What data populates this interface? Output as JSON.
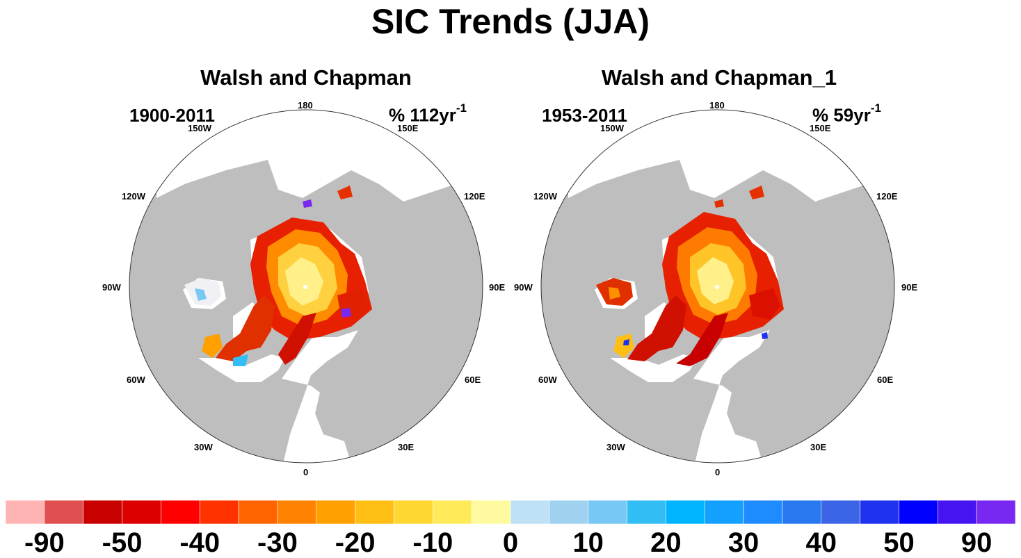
{
  "figure": {
    "title": "SIC Trends (JJA)",
    "colors": {
      "land": "#bebebe",
      "ocean": "#ffffff",
      "outline": "#333333"
    }
  },
  "panels": [
    {
      "title": "Walsh and Chapman",
      "period": "1900-2011",
      "rate_prefix": "% 112yr",
      "rate_exponent": "-1",
      "longitude_labels": {
        "top": "180",
        "150W": "150W",
        "150E": "150E",
        "120W": "120W",
        "120E": "120E",
        "90W": "90W",
        "90E": "90E",
        "60W": "60W",
        "60E": "60E",
        "30W": "30W",
        "30E": "30E",
        "bottom": "0"
      }
    },
    {
      "title": "Walsh and Chapman_1",
      "period": "1953-2011",
      "rate_prefix": "% 59yr",
      "rate_exponent": "-1",
      "longitude_labels": {
        "top": "180",
        "150W": "150W",
        "150E": "150E",
        "120W": "120W",
        "120E": "120E",
        "90W": "90W",
        "90E": "90E",
        "60W": "60W",
        "60E": "60E",
        "30W": "30W",
        "30E": "30E",
        "bottom": "0"
      }
    }
  ],
  "colorbar": {
    "colors": [
      "#ffb4b4",
      "#e05050",
      "#c80000",
      "#dc0000",
      "#ff0000",
      "#ff3200",
      "#ff6400",
      "#ff8200",
      "#ffa000",
      "#ffbe14",
      "#ffd732",
      "#ffeb5a",
      "#fffaa0",
      "#bee1f5",
      "#a0d2f0",
      "#78c8f5",
      "#32bef5",
      "#00b4ff",
      "#14a0ff",
      "#1e8cff",
      "#2878f0",
      "#3c64e6",
      "#1e32f0",
      "#0000ff",
      "#4614f0",
      "#7828f0"
    ],
    "labels": [
      "-90",
      "-50",
      "-40",
      "-30",
      "-20",
      "-10",
      "0",
      "10",
      "20",
      "30",
      "40",
      "50",
      "90"
    ]
  }
}
